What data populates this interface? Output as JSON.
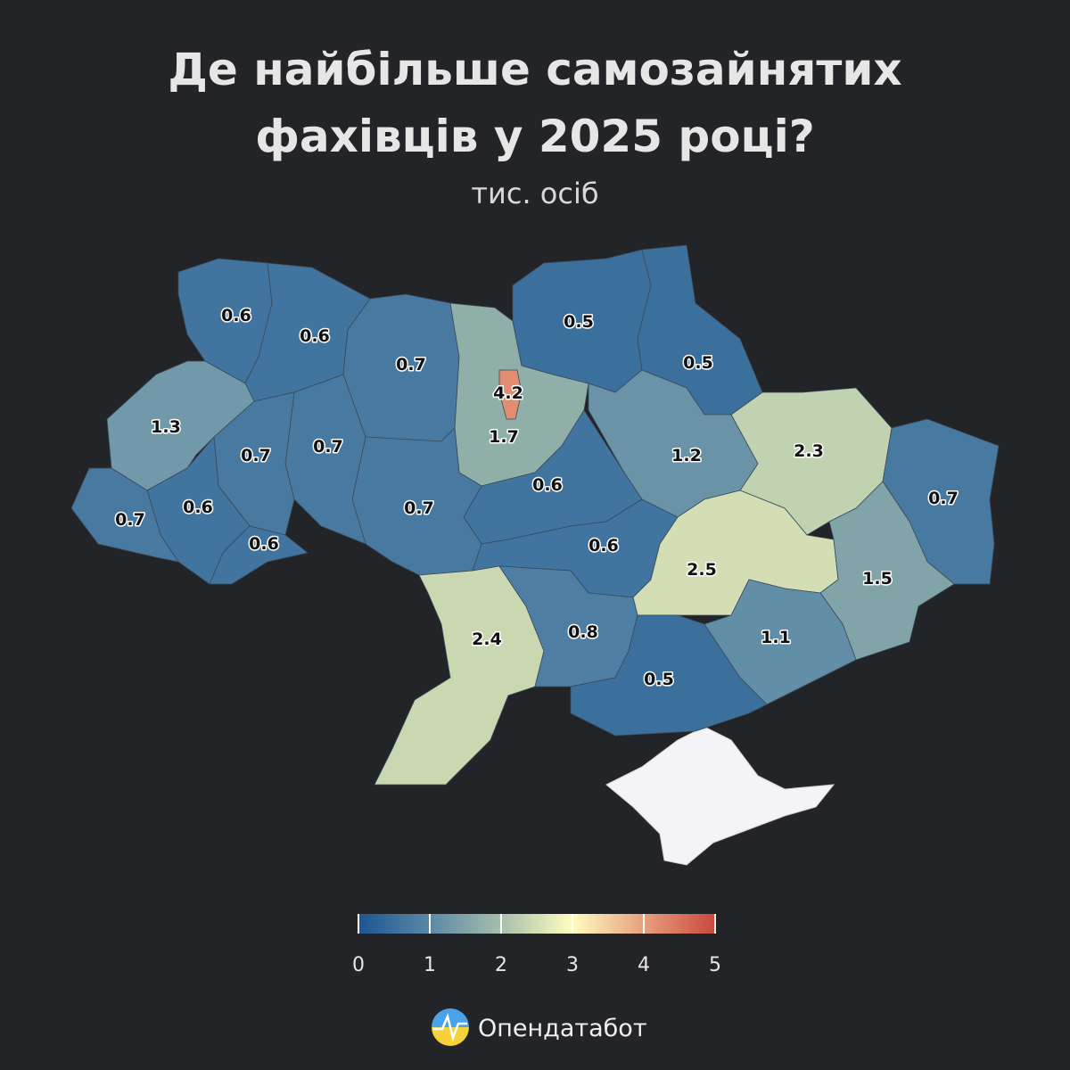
{
  "title": [
    "Де найбільше самозайнятих",
    "фахівців у 2025 році?"
  ],
  "subtitle": "тис. осіб",
  "chart_data": {
    "type": "choropleth",
    "values": [
      0.6,
      0.6,
      0.7,
      1.7,
      4.2,
      0.5,
      0.5,
      2.3,
      0.7,
      1.2,
      0.6,
      0.7,
      0.7,
      0.7,
      1.3,
      0.6,
      0.7,
      0.6,
      0.6,
      2.5,
      1.5,
      2.4,
      0.8,
      1.1,
      0.5
    ],
    "colorbar": {
      "lim": [
        0,
        5
      ],
      "ticks": [
        0,
        1,
        2,
        3,
        4,
        5
      ],
      "colors": [
        "#1b5590",
        "#5b88a8",
        "#a7bfaa",
        "#fffdbf",
        "#e7a07c",
        "#c9483e"
      ]
    }
  },
  "brand": "Опендатабот"
}
